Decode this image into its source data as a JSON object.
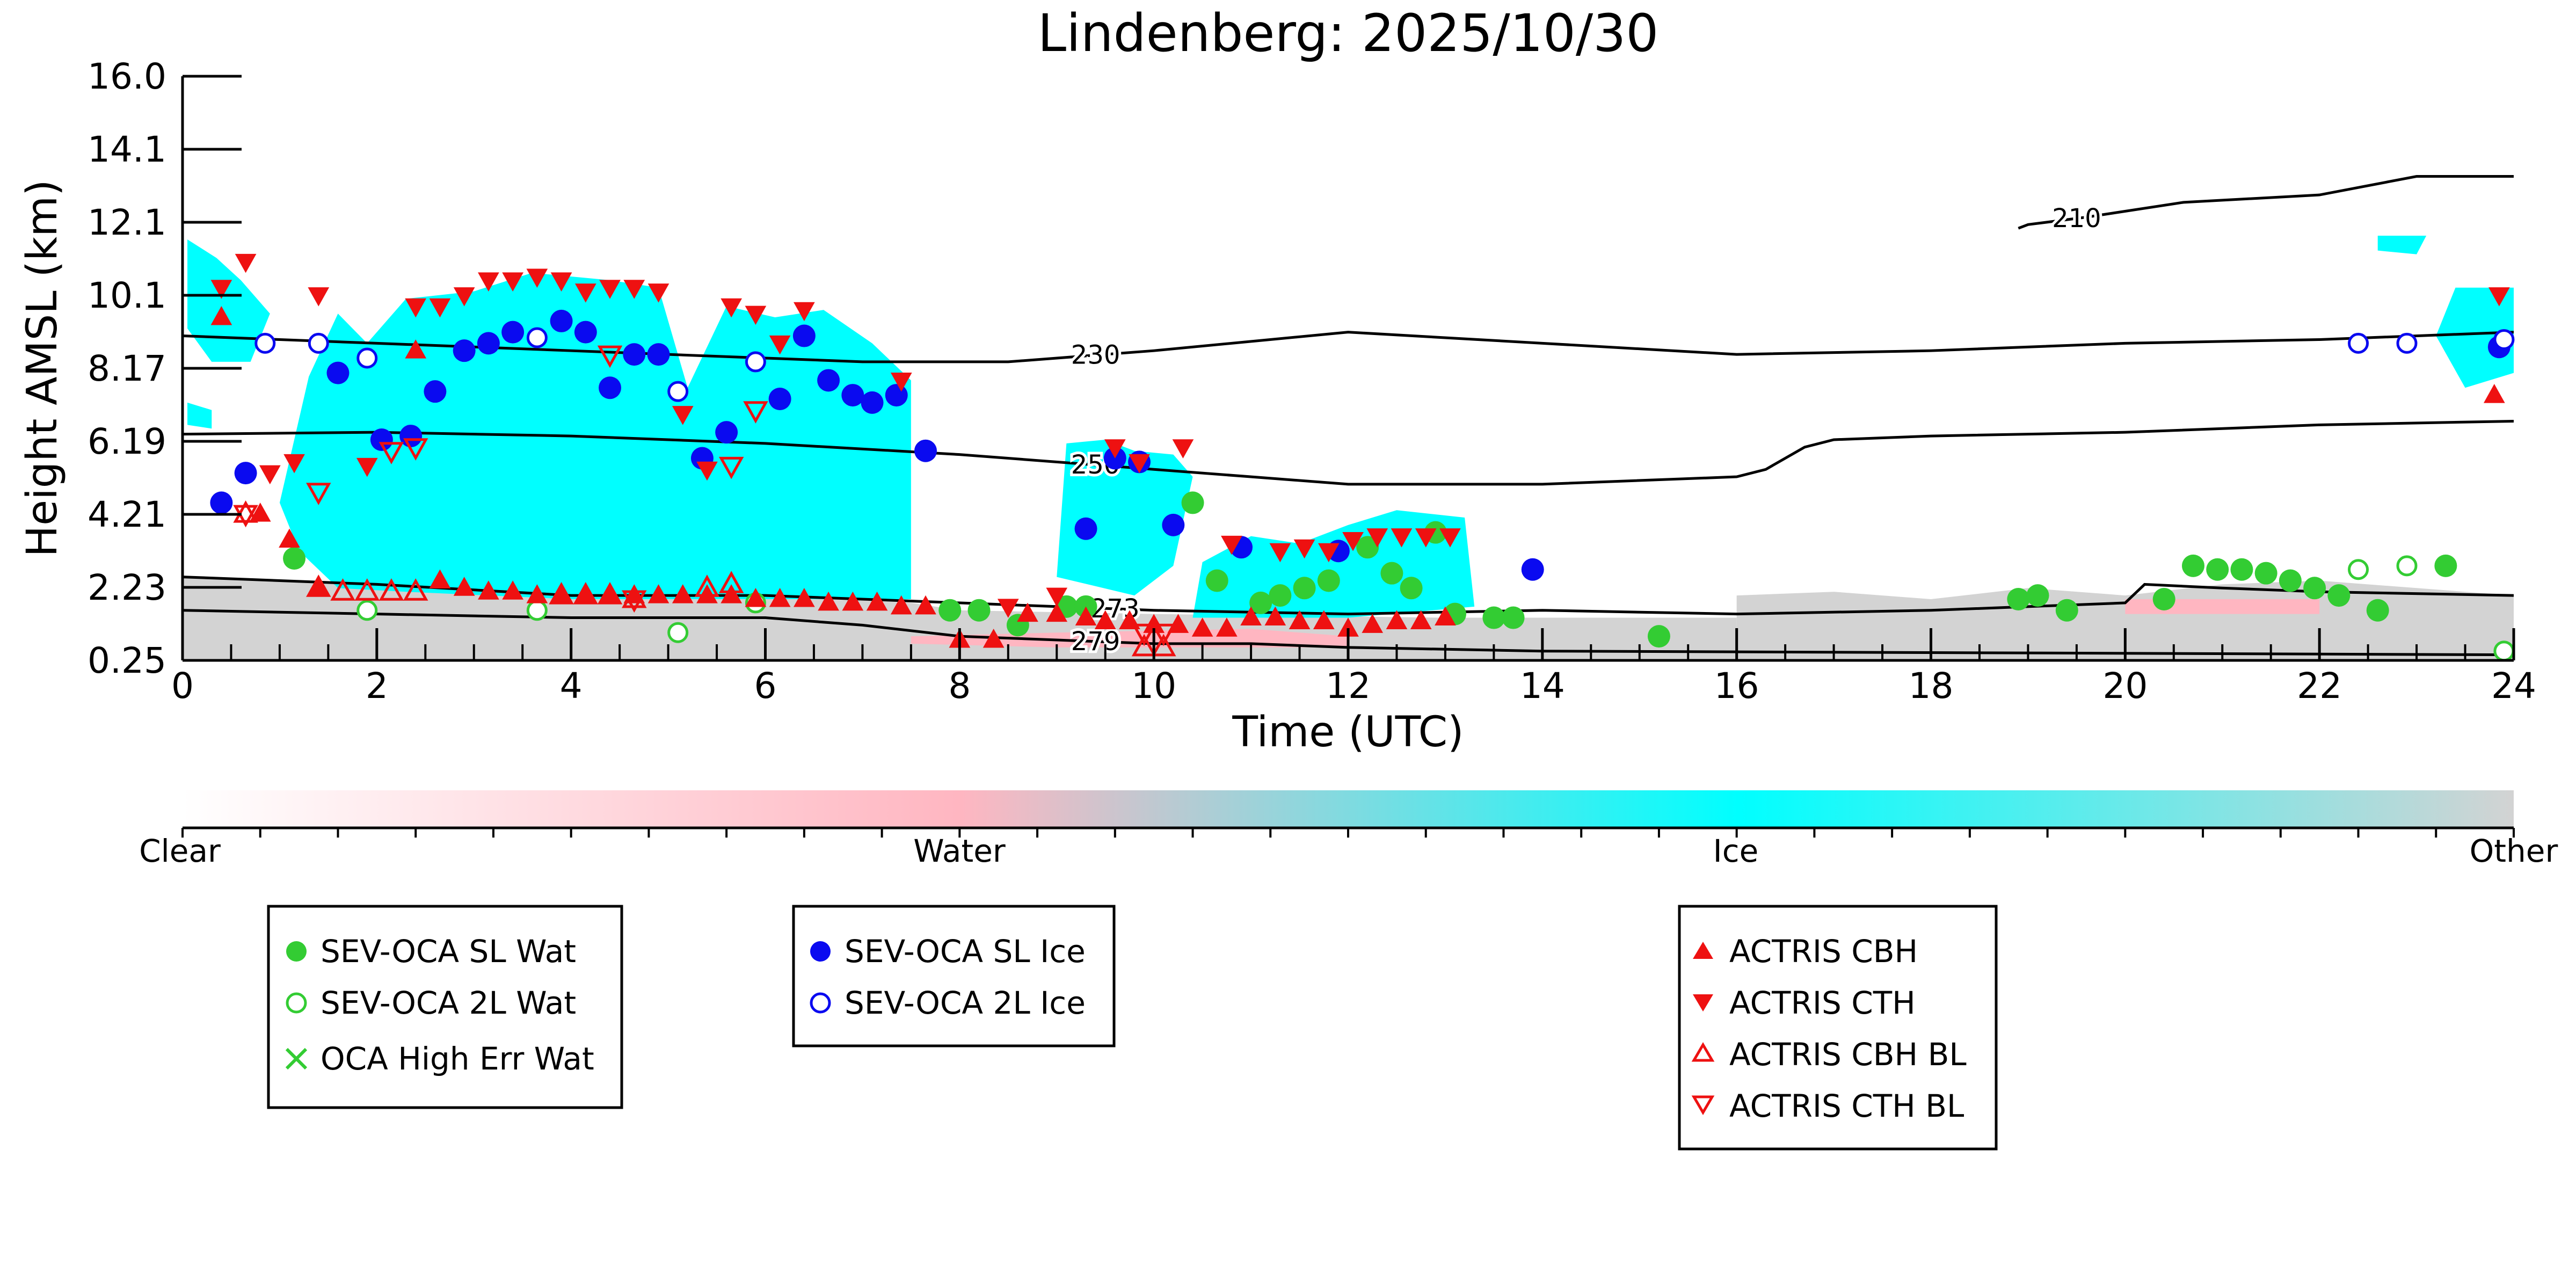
{
  "colors": {
    "clear": "#ffffff",
    "water": "#ffb6c1",
    "ice": "#00ffff",
    "other": "#d3d3d3",
    "wat_marker": "#33cc33",
    "ice_marker": "#0a0af0",
    "actris_marker": "#ee1111",
    "contour": "#000000"
  },
  "chart_data": {
    "type": "scatter",
    "title": "Lindenberg: 2025/10/30",
    "xlabel": "Time (UTC)",
    "ylabel": "Height AMSL (km)",
    "xlim": [
      0,
      24
    ],
    "ylim": [
      0.25,
      16.0
    ],
    "x_ticks": [
      0,
      2,
      4,
      6,
      8,
      10,
      12,
      14,
      16,
      18,
      20,
      22,
      24
    ],
    "y_ticks": [
      "0.25",
      "2.23",
      "4.21",
      "6.19",
      "8.17",
      "10.1",
      "12.1",
      "14.1",
      "16.0"
    ],
    "colorbar": {
      "labels": [
        "Clear",
        "Water",
        "Ice",
        "Other"
      ]
    },
    "contours": [
      {
        "label": "210",
        "label_x": 19.5,
        "points": [
          [
            18.9,
            11.9
          ],
          [
            19.0,
            12.0
          ],
          [
            19.6,
            12.2
          ],
          [
            20.6,
            12.6
          ],
          [
            22.0,
            12.8
          ],
          [
            23.0,
            13.3
          ],
          [
            24,
            13.3
          ]
        ]
      },
      {
        "label": "230",
        "label_x": 9.4,
        "points": [
          [
            0,
            9.0
          ],
          [
            2,
            8.8
          ],
          [
            4,
            8.6
          ],
          [
            7,
            8.3
          ],
          [
            8.5,
            8.3
          ],
          [
            10,
            8.6
          ],
          [
            12,
            9.1
          ],
          [
            14,
            8.8
          ],
          [
            16,
            8.5
          ],
          [
            18,
            8.6
          ],
          [
            20,
            8.8
          ],
          [
            22,
            8.9
          ],
          [
            24,
            9.1
          ]
        ]
      },
      {
        "label": "250",
        "label_x": 9.4,
        "points": [
          [
            0,
            6.35
          ],
          [
            2,
            6.4
          ],
          [
            4,
            6.3
          ],
          [
            6,
            6.1
          ],
          [
            8,
            5.8
          ],
          [
            10,
            5.4
          ],
          [
            12,
            5.0
          ],
          [
            14,
            5.0
          ],
          [
            16,
            5.2
          ],
          [
            16.3,
            5.4
          ],
          [
            16.7,
            6.0
          ],
          [
            17,
            6.2
          ],
          [
            18,
            6.3
          ],
          [
            20,
            6.4
          ],
          [
            22,
            6.6
          ],
          [
            24,
            6.7
          ]
        ]
      },
      {
        "label": "273",
        "label_x": 9.6,
        "points": [
          [
            0,
            2.5
          ],
          [
            2,
            2.3
          ],
          [
            4,
            2.0
          ],
          [
            6,
            2.0
          ],
          [
            8,
            1.8
          ],
          [
            10,
            1.6
          ],
          [
            12,
            1.5
          ],
          [
            14,
            1.6
          ],
          [
            16,
            1.5
          ],
          [
            18,
            1.6
          ],
          [
            20,
            1.8
          ],
          [
            20.2,
            2.3
          ],
          [
            21,
            2.2
          ],
          [
            22,
            2.1
          ],
          [
            24,
            2.0
          ]
        ]
      },
      {
        "label": "279",
        "label_x": 9.4,
        "points": [
          [
            0,
            1.6
          ],
          [
            2,
            1.5
          ],
          [
            4,
            1.4
          ],
          [
            6,
            1.4
          ],
          [
            7,
            1.2
          ],
          [
            8,
            0.9
          ],
          [
            9,
            0.8
          ],
          [
            10,
            0.7
          ],
          [
            11,
            0.7
          ],
          [
            12,
            0.6
          ],
          [
            14,
            0.5
          ],
          [
            24,
            0.4
          ]
        ]
      }
    ],
    "series": [
      {
        "name": "SEV-OCA SL Wat",
        "marker": "filled-circle",
        "color_key": "wat_marker",
        "x": [
          1.15,
          7.9,
          8.2,
          8.6,
          9.1,
          9.3,
          10.4,
          10.65,
          11.1,
          11.3,
          11.55,
          11.8,
          12.2,
          12.45,
          12.65,
          12.9,
          13.1,
          13.5,
          13.7,
          15.2,
          18.9,
          19.1,
          19.4,
          20.4,
          20.7,
          20.95,
          21.2,
          21.45,
          21.7,
          21.95,
          22.2,
          22.6,
          23.3
        ],
        "y": [
          3.0,
          1.6,
          1.6,
          1.2,
          1.7,
          1.7,
          4.5,
          2.4,
          1.8,
          2.0,
          2.2,
          2.4,
          3.3,
          2.6,
          2.2,
          3.7,
          1.5,
          1.4,
          1.4,
          0.9,
          1.9,
          2.0,
          1.6,
          1.9,
          2.8,
          2.7,
          2.7,
          2.6,
          2.4,
          2.2,
          2.0,
          1.6,
          2.8
        ]
      },
      {
        "name": "SEV-OCA 2L Wat",
        "marker": "open-circle",
        "color_key": "wat_marker",
        "x": [
          1.9,
          3.65,
          5.1,
          5.9,
          22.4,
          22.9,
          23.9
        ],
        "y": [
          1.6,
          1.6,
          1.0,
          1.8,
          2.7,
          2.8,
          0.5
        ]
      },
      {
        "name": "OCA High Err Wat",
        "marker": "x",
        "color_key": "wat_marker",
        "x": [],
        "y": []
      },
      {
        "name": "SEV-OCA SL Ice",
        "marker": "filled-circle",
        "color_key": "ice_marker",
        "x": [
          0.4,
          0.65,
          1.6,
          2.05,
          2.35,
          2.6,
          2.9,
          3.15,
          3.4,
          3.9,
          4.15,
          4.4,
          4.65,
          4.9,
          5.35,
          5.6,
          6.15,
          6.4,
          6.65,
          6.9,
          7.1,
          7.35,
          7.65,
          9.3,
          9.6,
          9.85,
          10.2,
          10.9,
          11.9,
          13.9,
          23.85
        ],
        "y": [
          4.5,
          5.3,
          8.0,
          6.2,
          6.3,
          7.5,
          8.6,
          8.8,
          9.1,
          9.4,
          9.1,
          7.6,
          8.5,
          8.5,
          5.7,
          6.4,
          7.3,
          9.0,
          7.8,
          7.4,
          7.2,
          7.4,
          5.9,
          3.8,
          5.7,
          5.6,
          3.9,
          3.3,
          3.2,
          2.7,
          8.7
        ]
      },
      {
        "name": "SEV-OCA 2L Ice",
        "marker": "open-circle",
        "color_key": "ice_marker",
        "x": [
          0.85,
          1.4,
          1.9,
          3.65,
          5.1,
          5.9,
          22.4,
          22.9,
          23.9
        ],
        "y": [
          8.8,
          8.8,
          8.4,
          8.95,
          7.5,
          8.3,
          8.8,
          8.8,
          8.9
        ]
      },
      {
        "name": "ACTRIS CBH",
        "marker": "triangle-up",
        "color_key": "actris_marker",
        "x": [
          0.4,
          0.8,
          1.1,
          1.4,
          2.4,
          2.65,
          2.9,
          3.15,
          3.4,
          3.65,
          3.9,
          4.15,
          4.4,
          4.65,
          4.9,
          5.15,
          5.4,
          5.65,
          5.9,
          6.15,
          6.4,
          6.65,
          6.9,
          7.15,
          7.4,
          7.65,
          8.0,
          8.35,
          8.7,
          9.0,
          9.3,
          9.5,
          9.75,
          10.0,
          10.25,
          10.5,
          10.75,
          11.0,
          11.25,
          11.5,
          11.75,
          12.0,
          12.25,
          12.5,
          12.75,
          13.0,
          23.8
        ],
        "y": [
          9.5,
          4.2,
          3.5,
          2.2,
          8.6,
          2.4,
          2.2,
          2.1,
          2.1,
          2.0,
          2.0,
          2.0,
          2.0,
          2.0,
          2.0,
          2.0,
          2.0,
          2.0,
          1.9,
          1.9,
          1.9,
          1.8,
          1.8,
          1.8,
          1.7,
          1.7,
          0.8,
          0.8,
          1.5,
          1.5,
          1.4,
          1.3,
          1.3,
          1.2,
          1.2,
          1.1,
          1.1,
          1.4,
          1.4,
          1.3,
          1.3,
          1.1,
          1.2,
          1.3,
          1.3,
          1.4,
          7.4
        ]
      },
      {
        "name": "ACTRIS CTH",
        "marker": "triangle-down",
        "color_key": "actris_marker",
        "x": [
          0.4,
          0.65,
          0.9,
          1.15,
          1.4,
          1.9,
          2.4,
          2.65,
          2.9,
          3.15,
          3.4,
          3.65,
          3.9,
          4.15,
          4.4,
          4.65,
          4.9,
          5.15,
          5.4,
          5.65,
          5.9,
          6.15,
          6.4,
          7.4,
          8.5,
          9.0,
          9.6,
          9.85,
          10.3,
          10.8,
          11.3,
          11.55,
          11.8,
          12.05,
          12.3,
          12.55,
          12.8,
          13.05,
          23.85
        ],
        "y": [
          10.3,
          11.0,
          5.3,
          5.6,
          10.1,
          5.5,
          9.8,
          9.8,
          10.1,
          10.5,
          10.5,
          10.6,
          10.5,
          10.2,
          10.3,
          10.3,
          10.2,
          6.9,
          5.4,
          9.8,
          9.6,
          8.8,
          9.7,
          7.8,
          1.7,
          2.0,
          6.0,
          5.6,
          6.0,
          3.4,
          3.2,
          3.3,
          3.2,
          3.5,
          3.6,
          3.6,
          3.6,
          3.6,
          10.1
        ]
      },
      {
        "name": "ACTRIS CBH BL",
        "marker": "open-triangle-up",
        "color_key": "actris_marker",
        "x": [
          0.65,
          1.4,
          1.65,
          1.9,
          2.15,
          2.4,
          3.9,
          4.15,
          4.4,
          4.65,
          5.4,
          5.65,
          9.9,
          10.1
        ],
        "y": [
          4.2,
          2.2,
          2.1,
          2.1,
          2.1,
          2.1,
          2.0,
          2.0,
          2.0,
          1.9,
          2.2,
          2.3,
          0.6,
          0.6
        ]
      },
      {
        "name": "ACTRIS CTH BL",
        "marker": "open-triangle-down",
        "color_key": "actris_marker",
        "x": [
          0.65,
          1.4,
          2.15,
          2.4,
          4.4,
          4.65,
          5.65,
          5.9,
          9.9,
          10.1
        ],
        "y": [
          4.2,
          4.8,
          5.9,
          6.0,
          8.5,
          1.9,
          5.5,
          7.0,
          1.0,
          1.0
        ]
      }
    ]
  },
  "legends": [
    {
      "entries": [
        {
          "label": "SEV-OCA SL Wat"
        },
        {
          "label": "SEV-OCA 2L Wat"
        },
        {
          "label": "OCA High Err Wat"
        }
      ]
    },
    {
      "entries": [
        {
          "label": "SEV-OCA SL Ice"
        },
        {
          "label": "SEV-OCA 2L Ice"
        }
      ]
    },
    {
      "entries": [
        {
          "label": "ACTRIS CBH"
        },
        {
          "label": "ACTRIS CTH"
        },
        {
          "label": "ACTRIS CBH BL"
        },
        {
          "label": "ACTRIS CTH BL"
        }
      ]
    }
  ]
}
